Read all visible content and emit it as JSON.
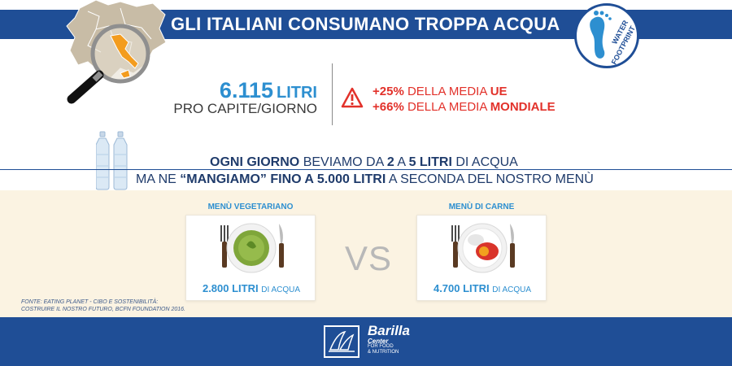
{
  "header": {
    "title": "GLI ITALIANI CONSUMANO TROPPA ACQUA",
    "badge_line1": "WATER",
    "badge_line2": "FOOTPRINT"
  },
  "stats": {
    "number": "6.115",
    "unit": "LITRI",
    "per_capita": "PRO CAPITE/GIORNO",
    "compare_eu_pct": "+25%",
    "compare_eu_text": "DELLA MEDIA",
    "compare_eu_region": "UE",
    "compare_world_pct": "+66%",
    "compare_world_text": "DELLA MEDIA",
    "compare_world_region": "MONDIALE"
  },
  "daily": {
    "p1": "OGNI GIORNO",
    "p2": "BEVIAMO DA",
    "p3": "2",
    "p4": "A",
    "p5": "5 LITRI",
    "p6": "DI ACQUA"
  },
  "eat": {
    "p1": "MA NE",
    "p2": "“MANGIAMO” FINO A 5.000 LITRI",
    "p3": "A SECONDA DEL NOSTRO MENÙ"
  },
  "menus": {
    "vegetarian_title": "MENÙ VEGETARIANO",
    "vegetarian_amount": "2.800 LITRI",
    "vegetarian_unit": "DI ACQUA",
    "meat_title": "MENÙ DI CARNE",
    "meat_amount": "4.700 LITRI",
    "meat_unit": "DI ACQUA",
    "vs": "VS"
  },
  "source": {
    "line1": "FONTE: EATING PLANET - CIBO E SOSTENIBILITÀ:",
    "line2": "COSTRUIRE IL NOSTRO FUTURO, BCFN FOUNDATION 2016."
  },
  "footer": {
    "logo_name": "Barilla",
    "logo_center": "Center",
    "logo_line1": "FOR FOOD",
    "logo_line2": "& NUTRITION"
  },
  "colors": {
    "brand_blue": "#1f4e96",
    "accent_blue": "#2d8fd0",
    "alert_red": "#e2312a",
    "cream": "#fbf3e2"
  }
}
